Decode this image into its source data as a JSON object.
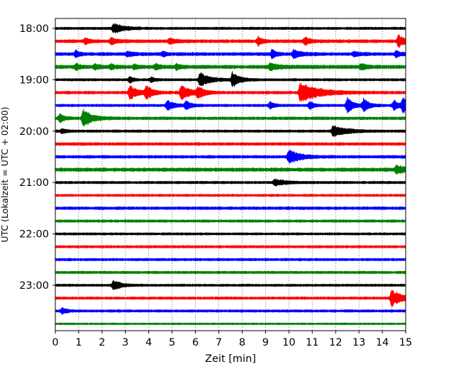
{
  "chart_data": {
    "type": "line",
    "subtype": "helicorder",
    "title": "",
    "xlabel": "Zeit  [min]",
    "ylabel": "UTC (Lokalzeit = UTC + 02:00)",
    "xlim": [
      0,
      15
    ],
    "x_ticks": [
      0,
      1,
      2,
      3,
      4,
      5,
      6,
      7,
      8,
      9,
      10,
      11,
      12,
      13,
      14,
      15
    ],
    "x_tick_labels": [
      "0",
      "1",
      "2",
      "3",
      "4",
      "5",
      "6",
      "7",
      "8",
      "9",
      "10",
      "11",
      "12",
      "13",
      "14",
      "15"
    ],
    "y_tick_labels": [
      "18:00",
      "19:00",
      "20:00",
      "21:00",
      "22:00",
      "23:00"
    ],
    "y_tick_trace_index": [
      0,
      4,
      8,
      12,
      16,
      20
    ],
    "vertical_grid": "dotted",
    "trace_color_cycle": [
      "#000000",
      "#ff0000",
      "#0000ff",
      "#008000"
    ],
    "traces": [
      {
        "start": "18:00",
        "noise": 0.16,
        "events": [
          [
            2.5,
            0.65,
            0.9
          ]
        ]
      },
      {
        "start": "18:15",
        "noise": 0.2,
        "events": [
          [
            1.3,
            0.4,
            0.4
          ],
          [
            2.4,
            0.45,
            0.5
          ],
          [
            4.9,
            0.35,
            0.5
          ],
          [
            8.7,
            0.55,
            0.35
          ],
          [
            10.7,
            0.6,
            0.4
          ],
          [
            14.7,
            0.9,
            0.5
          ]
        ]
      },
      {
        "start": "18:30",
        "noise": 0.2,
        "events": [
          [
            0.9,
            0.55,
            0.3
          ],
          [
            3.1,
            0.3,
            0.6
          ],
          [
            4.6,
            0.35,
            0.35
          ],
          [
            9.3,
            0.6,
            0.35
          ],
          [
            10.2,
            0.55,
            0.7
          ],
          [
            12.8,
            0.35,
            0.4
          ],
          [
            14.6,
            0.45,
            0.35
          ]
        ]
      },
      {
        "start": "18:45",
        "noise": 0.22,
        "events": [
          [
            0.9,
            0.45,
            0.3
          ],
          [
            1.7,
            0.35,
            0.4
          ],
          [
            2.4,
            0.3,
            0.4
          ],
          [
            3.4,
            0.3,
            0.4
          ],
          [
            4.3,
            0.35,
            0.4
          ],
          [
            5.2,
            0.35,
            0.35
          ],
          [
            9.2,
            0.45,
            0.8
          ],
          [
            13.1,
            0.4,
            0.5
          ]
        ]
      },
      {
        "start": "19:00",
        "noise": 0.16,
        "events": [
          [
            3.2,
            0.4,
            0.35
          ],
          [
            4.1,
            0.35,
            0.35
          ],
          [
            6.2,
            1.0,
            0.9
          ],
          [
            7.6,
            1.1,
            0.6
          ]
        ]
      },
      {
        "start": "19:15",
        "noise": 0.18,
        "events": [
          [
            3.2,
            1.0,
            0.7
          ],
          [
            3.9,
            0.9,
            0.6
          ],
          [
            5.4,
            1.1,
            0.7
          ],
          [
            6.1,
            0.8,
            0.6
          ],
          [
            10.5,
            1.5,
            1.6
          ]
        ]
      },
      {
        "start": "19:30",
        "noise": 0.16,
        "events": [
          [
            4.8,
            0.7,
            0.6
          ],
          [
            5.6,
            0.6,
            0.5
          ],
          [
            9.2,
            0.5,
            0.4
          ],
          [
            10.9,
            0.55,
            0.4
          ],
          [
            12.5,
            1.05,
            0.6
          ],
          [
            13.2,
            0.9,
            0.5
          ],
          [
            14.5,
            0.75,
            0.5
          ],
          [
            14.9,
            1.2,
            0.4
          ]
        ]
      },
      {
        "start": "19:45",
        "noise": 0.18,
        "events": [
          [
            0.2,
            0.6,
            0.4
          ],
          [
            1.2,
            1.3,
            0.8
          ]
        ]
      },
      {
        "start": "20:00",
        "noise": 0.16,
        "events": [
          [
            11.9,
            0.85,
            1.2
          ],
          [
            0.3,
            0.3,
            0.4
          ]
        ]
      },
      {
        "start": "20:15",
        "noise": 0.18,
        "events": []
      },
      {
        "start": "20:30",
        "noise": 0.18,
        "events": [
          [
            10.0,
            1.0,
            1.0
          ]
        ]
      },
      {
        "start": "20:45",
        "noise": 0.22,
        "events": [
          [
            14.6,
            0.6,
            0.8
          ]
        ]
      },
      {
        "start": "21:00",
        "noise": 0.16,
        "events": [
          [
            9.4,
            0.45,
            1.0
          ]
        ]
      },
      {
        "start": "21:15",
        "noise": 0.15,
        "events": []
      },
      {
        "start": "21:30",
        "noise": 0.18,
        "events": []
      },
      {
        "start": "21:45",
        "noise": 0.16,
        "events": []
      },
      {
        "start": "22:00",
        "noise": 0.15,
        "events": []
      },
      {
        "start": "22:15",
        "noise": 0.16,
        "events": []
      },
      {
        "start": "22:30",
        "noise": 0.16,
        "events": []
      },
      {
        "start": "22:45",
        "noise": 0.16,
        "events": []
      },
      {
        "start": "23:00",
        "noise": 0.15,
        "events": [
          [
            2.5,
            0.8,
            0.6
          ]
        ]
      },
      {
        "start": "23:15",
        "noise": 0.16,
        "events": [
          [
            14.4,
            1.2,
            1.0
          ]
        ]
      },
      {
        "start": "23:30",
        "noise": 0.16,
        "events": [
          [
            0.3,
            0.45,
            0.4
          ]
        ]
      },
      {
        "start": "23:45",
        "noise": 0.12,
        "events": []
      }
    ]
  }
}
